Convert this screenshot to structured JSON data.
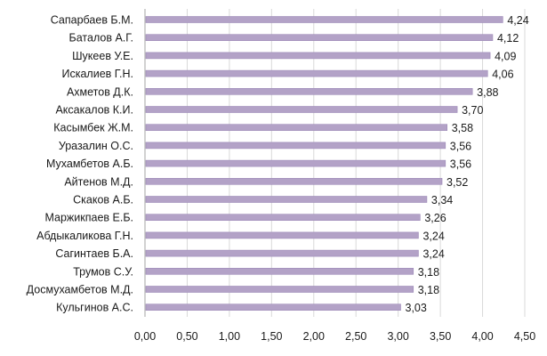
{
  "chart_data": {
    "type": "bar",
    "orientation": "horizontal",
    "categories": [
      "Сапарбаев Б.М.",
      "Баталов А.Г.",
      "Шукеев У.Е.",
      "Искалиев Г.Н.",
      "Ахметов Д.К.",
      "Аксакалов К.И.",
      "Касымбек Ж.М.",
      "Уразалин О.С.",
      "Мухамбетов А.Б.",
      "Айтенов М.Д.",
      "Скаков А.Б.",
      "Маржикпаев Е.Б.",
      "Абдыкаликова Г.Н.",
      "Сагинтаев Б.А.",
      "Трумов С.У.",
      "Досмухамбетов М.Д.",
      "Кульгинов А.С."
    ],
    "values": [
      4.24,
      4.12,
      4.09,
      4.06,
      3.88,
      3.7,
      3.58,
      3.56,
      3.56,
      3.52,
      3.34,
      3.26,
      3.24,
      3.24,
      3.18,
      3.18,
      3.03
    ],
    "value_labels": [
      "4,24",
      "4,12",
      "4,09",
      "4,06",
      "3,88",
      "3,70",
      "3,58",
      "3,56",
      "3,56",
      "3,52",
      "3,34",
      "3,26",
      "3,24",
      "3,24",
      "3,18",
      "3,18",
      "3,03"
    ],
    "x_ticks": [
      0,
      0.5,
      1,
      1.5,
      2,
      2.5,
      3,
      3.5,
      4,
      4.5
    ],
    "x_tick_labels": [
      "0,00",
      "0,50",
      "1,00",
      "1,50",
      "2,00",
      "2,50",
      "3,00",
      "3,50",
      "4,00",
      "4,50"
    ],
    "xlim": [
      0,
      4.5
    ],
    "title": "",
    "xlabel": "",
    "ylabel": "",
    "grid": true,
    "legend": "none",
    "colors": {
      "bar_fill": "#b3a2c7",
      "bar_edge": "#9d8ab8"
    }
  }
}
